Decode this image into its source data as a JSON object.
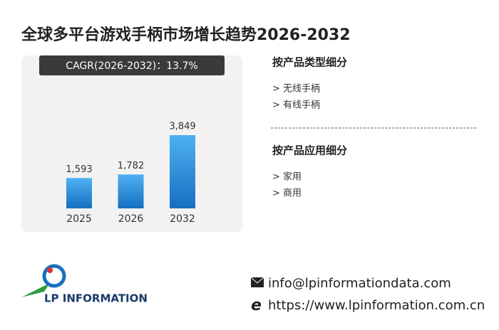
{
  "chart_data": {
    "type": "bar",
    "title": "全球多平台游戏手柄市场增长趋势2026-2032",
    "subtitle": "CAGR(2026-2032)：13.7%",
    "categories": [
      "2025",
      "2026",
      "2032"
    ],
    "values": [
      1593,
      1782,
      3849
    ],
    "value_labels": [
      "1,593",
      "1,782",
      "3,849"
    ],
    "color": "#4fb0f2"
  },
  "sidebar": {
    "sections": [
      {
        "title": "按产品类型细分",
        "items": [
          "> 无线手柄",
          "> 有线手柄"
        ]
      },
      {
        "title": "按产品应用细分",
        "items": [
          "> 家用",
          "> 商用"
        ]
      }
    ]
  },
  "footer": {
    "logo": "LP INFORMATION",
    "email": "info@lpinformationdata.com",
    "website": "https://www.lpinformation.com.cn"
  }
}
